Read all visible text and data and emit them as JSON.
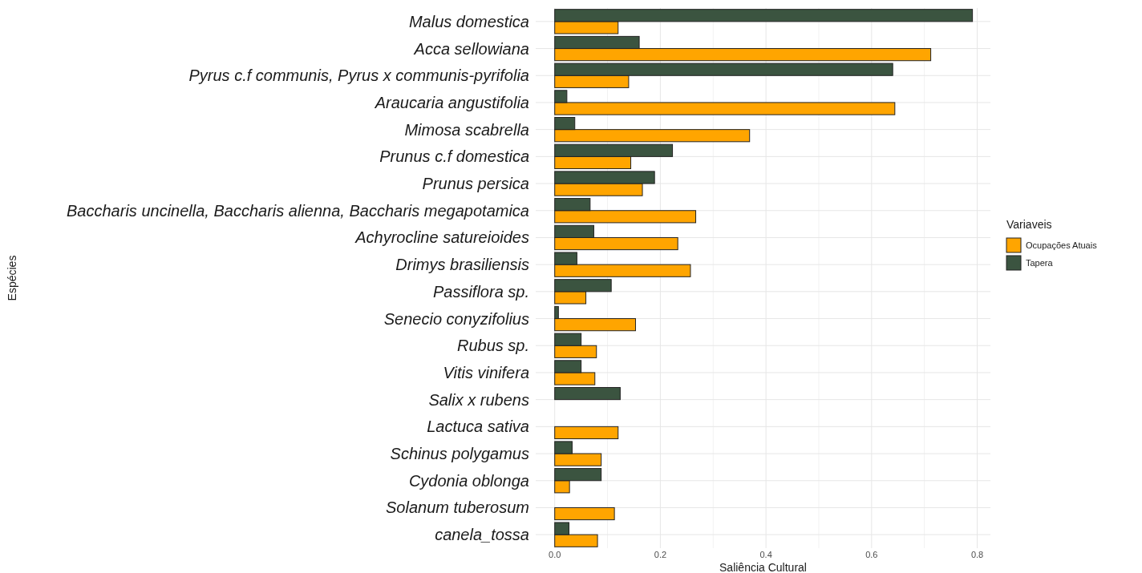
{
  "chart_data": {
    "type": "bar",
    "orientation": "horizontal",
    "xlabel": "Saliência Cultural",
    "ylabel": "Espécies",
    "legend_title": "Variaveis",
    "legend": "right",
    "grid": true,
    "categories": [
      "Malus domestica",
      "Acca sellowiana",
      "Pyrus c.f communis, Pyrus x communis-pyrifolia",
      "Araucaria angustifolia",
      "Mimosa scabrella",
      "Prunus c.f domestica",
      "Prunus persica",
      "Baccharis uncinella, Baccharis alienna, Baccharis megapotamica",
      "Achyrocline satureioides",
      "Drimys brasiliensis",
      "Passiflora sp.",
      "Senecio conyzifolius",
      "Rubus sp.",
      "Vitis vinifera",
      "Salix x rubens",
      "Lactuca sativa",
      "Schinus polygamus",
      "Cydonia oblonga",
      "Solanum tuberosum",
      "canela_tossa"
    ],
    "series": [
      {
        "name": "Ocupações Atuais",
        "color": "#ffa500",
        "values": [
          0.12,
          0.712,
          0.14,
          0.644,
          0.369,
          0.144,
          0.166,
          0.267,
          0.233,
          0.257,
          0.059,
          0.153,
          0.079,
          0.076,
          0,
          0.12,
          0.088,
          0.028,
          0.113,
          0.081
        ]
      },
      {
        "name": "Tapera",
        "color": "#3b5440",
        "values": [
          0.791,
          0.16,
          0.64,
          0.023,
          0.038,
          0.223,
          0.189,
          0.067,
          0.074,
          0.042,
          0.107,
          0.007,
          0.05,
          0.05,
          0.124,
          0,
          0.033,
          0.088,
          0,
          0.027
        ]
      }
    ],
    "xlim": [
      -0.036,
      0.825
    ],
    "xticks": [
      {
        "value": 0,
        "label": "0.0"
      },
      {
        "value": 0.2,
        "label": "0.2"
      },
      {
        "value": 0.4,
        "label": "0.4"
      },
      {
        "value": 0.6,
        "label": "0.6"
      },
      {
        "value": 0.8,
        "label": "0.8"
      }
    ]
  }
}
